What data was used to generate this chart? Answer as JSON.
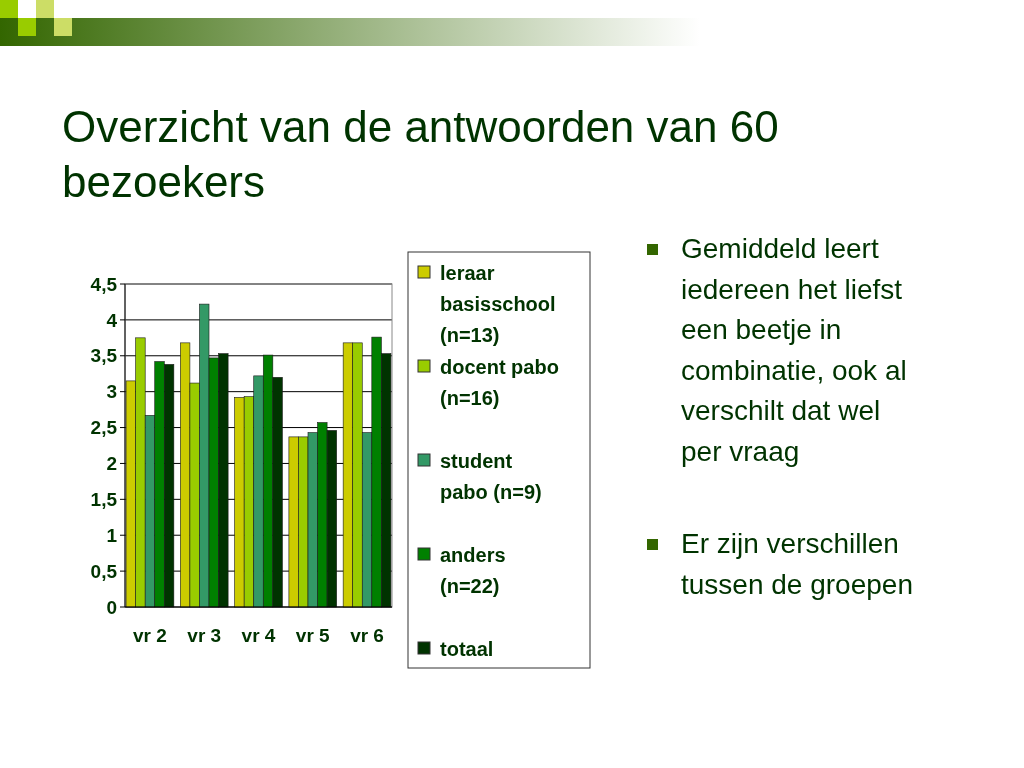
{
  "chart_data": {
    "type": "bar",
    "title": "Overzicht van de antwoorden van 60 bezoekers",
    "categories": [
      "vr 2",
      "vr 3",
      "vr 4",
      "vr 5",
      "vr 6"
    ],
    "series": [
      {
        "name": "leraar basisschool (n=13)",
        "color": "#cccc00",
        "values": [
          3.15,
          3.68,
          2.92,
          2.37,
          3.68
        ]
      },
      {
        "name": "docent pabo (n=16)",
        "color": "#99cc00",
        "values": [
          3.75,
          3.12,
          2.93,
          2.37,
          3.68
        ]
      },
      {
        "name": "student pabo (n=9)",
        "color": "#339966",
        "values": [
          2.67,
          4.22,
          3.22,
          2.43,
          2.43
        ]
      },
      {
        "name": "anders (n=22)",
        "color": "#008000",
        "values": [
          3.42,
          3.47,
          3.51,
          2.57,
          3.76
        ]
      },
      {
        "name": "totaal",
        "color": "#003300",
        "values": [
          3.38,
          3.53,
          3.2,
          2.46,
          3.53
        ]
      }
    ],
    "ylim": [
      0,
      4.5
    ],
    "yticks": [
      {
        "value": 0,
        "label": "0"
      },
      {
        "value": 0.5,
        "label": "0,5"
      },
      {
        "value": 1,
        "label": "1"
      },
      {
        "value": 1.5,
        "label": "1,5"
      },
      {
        "value": 2,
        "label": "2"
      },
      {
        "value": 2.5,
        "label": "2,5"
      },
      {
        "value": 3,
        "label": "3"
      },
      {
        "value": 3.5,
        "label": "3,5"
      },
      {
        "value": 4,
        "label": "4"
      },
      {
        "value": 4.5,
        "label": "4,5"
      }
    ],
    "grid": "y",
    "legend": "right",
    "annotations": [
      "Gemiddeld leert iedereen het liefst een beetje in combinatie, ook al verschilt dat wel per vraag",
      "Er zijn verschillen tussen de groepen"
    ]
  }
}
